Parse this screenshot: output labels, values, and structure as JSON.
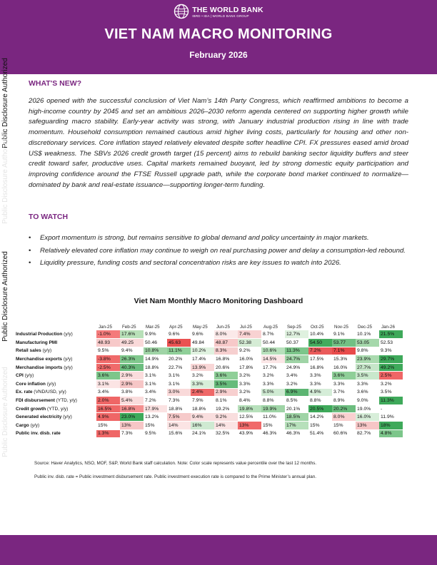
{
  "header": {
    "logo_name": "THE WORLD BANK",
    "logo_sub": "IBRD • IDA | WORLD BANK GROUP",
    "title": "VIET NAM MACRO MONITORING",
    "date": "February 2026",
    "color": "#7a2680"
  },
  "side_labels": {
    "top": "Public Disclosure Authorized",
    "ghost_upper": "Public Disclosure Authorized",
    "middle": "Public Disclosure Authorized",
    "ghost_lower": "Public Disclosure Authorized"
  },
  "whats_new": {
    "heading": "WHAT'S NEW?",
    "text": "2026 opened with the successful conclusion of Viet Nam’s 14th Party Congress, which reaffirmed ambitions to become a high-income country by 2045 and set an ambitious 2026–2030 reform agenda centered on supporting higher growth while safeguarding macro stability. Early-year activity was strong, with January industrial production rising in line with trade momentum. Household consumption remained cautious amid higher living costs, particularly for housing and other non-discretionary services. Core inflation stayed relatively elevated despite softer headline CPI. FX pressures eased amid broad US$ weakness. The SBVs 2026 credit growth target (15 percent) aims to rebuild banking sector liquidity buffers and steer credit toward safer, productive uses. Capital markets remained buoyant, led by strong domestic equity participation and improving confidence around the FTSE Russell upgrade path, while the corporate bond market continued to normalize—dominated by bank and real-estate issuance—supporting longer-term funding."
  },
  "to_watch": {
    "heading": "TO WATCH",
    "bullet_glyph": "•",
    "items": [
      "Export momentum is strong, but remains sensitive to global demand and policy uncertainty in major markets.",
      "Relatively elevated core inflation may continue to weigh on real purchasing power and delay a consumption-led rebound.",
      "Liquidity pressure, funding costs and sectoral concentration risks are key issues to watch into 2026."
    ]
  },
  "dashboard": {
    "title": "Viet Nam Monthly Macro Monitoring Dashboard",
    "months": [
      "Jan-25",
      "Feb-25",
      "Mar-25",
      "Apr-25",
      "May-25",
      "Jun-25",
      "Jul-25",
      "Aug-25",
      "Sep-25",
      "Oct-25",
      "Nov-25",
      "Dec-25",
      "Jan-26"
    ],
    "rows": [
      {
        "name": "Industrial Production",
        "unit": " (y/y)",
        "values": [
          "-1.0%",
          "17.6%",
          "9.9%",
          "9.6%",
          "9.6%",
          "8.0%",
          "7.4%",
          "8.7%",
          "12.7%",
          "10.4%",
          "9.1%",
          "10.1%",
          "21.5%"
        ],
        "colors": [
          "#f47a7a",
          "#b8e0b8",
          "",
          "",
          "",
          "#fbe9e9",
          "#f8d2d2",
          "",
          "#dff1df",
          "",
          "",
          "",
          "#3ea95a"
        ]
      },
      {
        "name": "Manufacturing PMI",
        "unit": "",
        "values": [
          "48.93",
          "49.25",
          "50.46",
          "45.63",
          "49.84",
          "48.87",
          "52.38",
          "50.44",
          "50.37",
          "54.50",
          "53.77",
          "53.05",
          "52.53"
        ],
        "colors": [
          "#f7c9c9",
          "#f9d9d9",
          "",
          "#ea5252",
          "",
          "#f7c9c9",
          "#d5ecd5",
          "",
          "",
          "#43ab5d",
          "#72c084",
          "#a5d8ab",
          ""
        ]
      },
      {
        "name": "Retail sales",
        "unit": " (y/y)",
        "values": [
          "9.5%",
          "9.4%",
          "10.8%",
          "11.1%",
          "10.2%",
          "8.3%",
          "9.2%",
          "10.6%",
          "11.3%",
          "7.2%",
          "7.1%",
          "9.8%",
          "9.3%"
        ],
        "colors": [
          "",
          "",
          "#9fd4a6",
          "#8fcf98",
          "#e0f2e0",
          "#f6cfcf",
          "",
          "#b7e0bb",
          "#7cc68a",
          "#ea5a5a",
          "#e84a4a",
          "",
          ""
        ]
      },
      {
        "name": "Merchandise exports",
        "unit": " (y/y)",
        "values": [
          "-3.8%",
          "26.3%",
          "14.9%",
          "20.2%",
          "17.4%",
          "16.8%",
          "16.0%",
          "14.5%",
          "24.7%",
          "17.5%",
          "15.3%",
          "23.9%",
          "29.7%"
        ],
        "colors": [
          "#f06a6a",
          "#80c88d",
          "",
          "",
          "",
          "",
          "",
          "#fbe6e6",
          "#9fd4a6",
          "",
          "",
          "#aadaaf",
          "#3ea95a"
        ]
      },
      {
        "name": "Merchandise imports",
        "unit": " (y/y)",
        "values": [
          "-2.5%",
          "40.3%",
          "18.8%",
          "22.7%",
          "13.9%",
          "20.6%",
          "17.8%",
          "17.7%",
          "24.9%",
          "16.8%",
          "16.0%",
          "27.7%",
          "49.2%"
        ],
        "colors": [
          "#f06a6a",
          "#6cbd7f",
          "",
          "",
          "#f8d6d6",
          "",
          "",
          "",
          "",
          "",
          "",
          "#c6e6c9",
          "#3ea95a"
        ]
      },
      {
        "name": "CPI",
        "unit": " (y/y)",
        "values": [
          "3.6%",
          "2.9%",
          "3.1%",
          "3.1%",
          "3.2%",
          "3.6%",
          "3.2%",
          "3.2%",
          "3.4%",
          "3.3%",
          "3.6%",
          "3.5%",
          "2.5%"
        ],
        "colors": [
          "#7cc68a",
          "#fadcdc",
          "",
          "",
          "",
          "#8fcf98",
          "",
          "",
          "",
          "",
          "#8fcf98",
          "#c9e8cc",
          "#ef6666"
        ]
      },
      {
        "name": "Core inflation",
        "unit": " (y/y)",
        "values": [
          "3.1%",
          "2.9%",
          "3.1%",
          "3.1%",
          "3.3%",
          "3.5%",
          "3.3%",
          "3.3%",
          "3.2%",
          "3.3%",
          "3.3%",
          "3.3%",
          "3.2%"
        ],
        "colors": [
          "#fbe4e4",
          "#f6c6c6",
          "",
          "",
          "#d7eed9",
          "#67bb7b",
          "",
          "",
          "",
          "",
          "",
          "",
          ""
        ]
      },
      {
        "name": "Ex. rate",
        "unit": " (VND/USD, y/y)",
        "values": [
          "3.4%",
          "3.8%",
          "3.4%",
          "3.0%",
          "2.4%",
          "2.9%",
          "3.2%",
          "5.0%",
          "6.9%",
          "4.9%",
          "3.7%",
          "3.6%",
          "3.5%"
        ],
        "colors": [
          "",
          "",
          "",
          "#f9d9d9",
          "#ef6868",
          "#f7cfcf",
          "",
          "#cfead2",
          "#5cb572",
          "#d5edd8",
          "",
          "",
          ""
        ]
      },
      {
        "name": "FDI disbursement",
        "unit": " (YTD, y/y)",
        "values": [
          "2.0%",
          "5.4%",
          "7.2%",
          "7.3%",
          "7.9%",
          "8.1%",
          "8.4%",
          "8.8%",
          "8.5%",
          "8.8%",
          "8.9%",
          "9.0%",
          "11.3%"
        ],
        "colors": [
          "#ef6666",
          "#fadcdc",
          "",
          "",
          "",
          "",
          "",
          "",
          "",
          "",
          "",
          "",
          "#3ea95a"
        ]
      },
      {
        "name": "Credit growth",
        "unit": " (YTD, y/y)",
        "values": [
          "16.5%",
          "16.8%",
          "17.9%",
          "18.8%",
          "18.8%",
          "19.2%",
          "19.8%",
          "19.9%",
          "20.1%",
          "20.5%",
          "20.2%",
          "19.0%",
          "-"
        ],
        "colors": [
          "#ef6666",
          "#f49090",
          "#fbe2e2",
          "",
          "",
          "",
          "#b7e0bb",
          "#9fd4a6",
          "",
          "#3ea95a",
          "#6cbd7f",
          "",
          ""
        ]
      },
      {
        "name": "Generated electricity",
        "unit": " (y/y)",
        "values": [
          "4.9%",
          "23.0%",
          "13.2%",
          "7.5%",
          "9.4%",
          "9.2%",
          "12.5%",
          "11.0%",
          "18.5%",
          "14.2%",
          "8.0%",
          "16.0%",
          "11.9%"
        ],
        "colors": [
          "#ef6666",
          "#3ea95a",
          "",
          "#f6caca",
          "#f9dede",
          "#f9dede",
          "",
          "",
          "#9fd4a6",
          "",
          "#f9d0d0",
          "#d7eed9",
          ""
        ]
      },
      {
        "name": "Cargo",
        "unit": " (y/y)",
        "values": [
          "15%",
          "13%",
          "15%",
          "14%",
          "16%",
          "14%",
          "13%",
          "15%",
          "17%",
          "15%",
          "15%",
          "13%",
          "18%"
        ],
        "colors": [
          "",
          "#f6c6c6",
          "",
          "#fbe4e4",
          "#cfead2",
          "#fbe4e4",
          "#f06a6a",
          "",
          "#b7e0bb",
          "",
          "",
          "#f6c6c6",
          "#3ea95a"
        ]
      },
      {
        "name": "Public inv. disb. rate",
        "unit": "",
        "values": [
          "1.3%",
          "7.3%",
          "9.5%",
          "15.6%",
          "24.1%",
          "32.5%",
          "43.9%",
          "46.3%",
          "46.3%",
          "51.4%",
          "60.6%",
          "82.7%",
          "4.8%"
        ],
        "colors": [
          "#ef6666",
          "",
          "",
          "",
          "",
          "",
          "",
          "",
          "",
          "",
          "",
          "",
          "#7cc68a"
        ]
      }
    ]
  },
  "notes": {
    "source": "Source: Haver Analytics, NSO, MOF, S&P, World Bank staff calculation. Note: Color scale represents value percentile over the last 12 months.",
    "definition": "Public inv. disb. rate = Public investment disbursement rate. Public investment execution rate is compared to the Prime Minister’s annual plan."
  }
}
